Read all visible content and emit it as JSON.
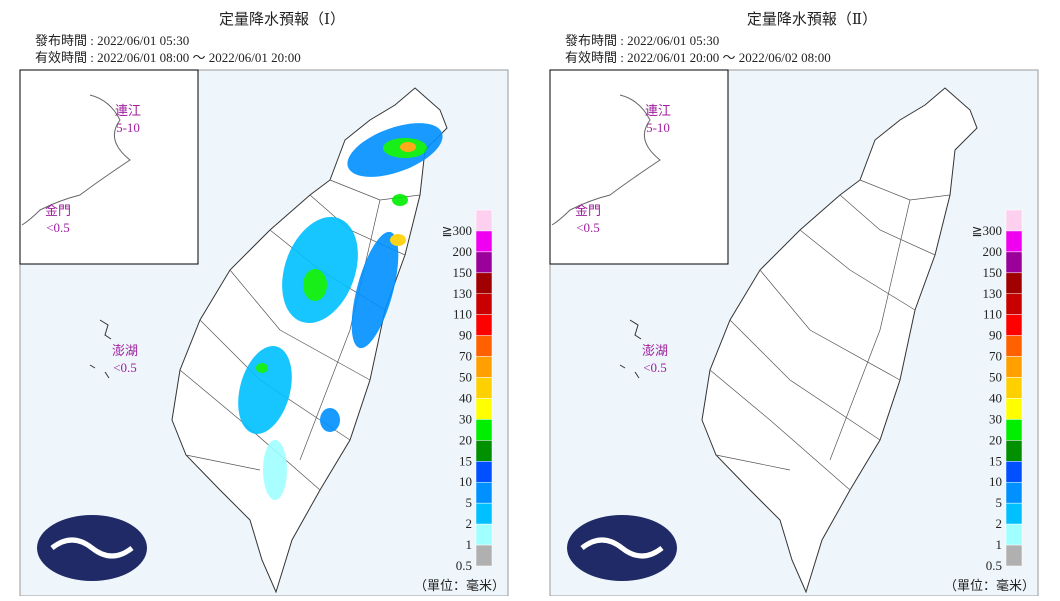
{
  "panels": [
    {
      "title": "定量降水預報（Ⅰ）",
      "issued": "發布時間 : 2022/06/01 05:30",
      "valid": "有效時間 : 2022/06/01 08:00 ～ 2022/06/01 20:00",
      "insets": [
        {
          "name": "連江",
          "value": "5-10"
        },
        {
          "name": "金門",
          "value": "<0.5"
        },
        {
          "name": "澎湖",
          "value": "<0.5"
        }
      ]
    },
    {
      "title": "定量降水預報（Ⅱ）",
      "issued": "發布時間 : 2022/06/01 05:30",
      "valid": "有效時間 : 2022/06/01 20:00 ～ 2022/06/02 08:00",
      "insets": [
        {
          "name": "連江",
          "value": "5-10"
        },
        {
          "name": "金門",
          "value": "<0.5"
        },
        {
          "name": "澎湖",
          "value": "<0.5"
        }
      ]
    }
  ],
  "legend": {
    "labels": [
      "≧300",
      "200",
      "150",
      "130",
      "110",
      "90",
      "70",
      "50",
      "40",
      "30",
      "20",
      "15",
      "10",
      "5",
      "2",
      "1",
      "0.5"
    ],
    "colors": [
      "#fdd0f0",
      "#f000f0",
      "#9a009a",
      "#a00000",
      "#c80000",
      "#ff0000",
      "#ff6000",
      "#ffa000",
      "#ffd000",
      "#ffff00",
      "#00ee00",
      "#009000",
      "#0050ff",
      "#0090ff",
      "#00c0ff",
      "#a0ffff",
      "#b0b0b0"
    ]
  },
  "unit": "（單位：毫米）"
}
